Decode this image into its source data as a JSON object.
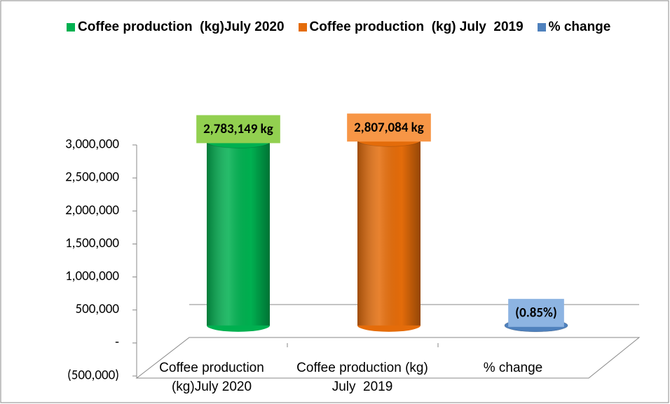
{
  "chart_data": {
    "type": "bar3d",
    "categories": [
      "Coffee production (kg)July 2020",
      "Coffee production (kg) July  2019",
      "% change"
    ],
    "series": [
      {
        "name": "Coffee production  (kg)July 2020",
        "color": "#00b050",
        "label_color": "#92d050",
        "values": [
          2783149,
          null,
          null
        ],
        "value_labels": [
          "2,783,149 kg",
          null,
          null
        ]
      },
      {
        "name": "Coffee production  (kg) July  2019",
        "color": "#e46c0a",
        "label_color": "#f79646",
        "values": [
          null,
          2807084,
          null
        ],
        "value_labels": [
          null,
          "2,807,084 kg",
          null
        ]
      },
      {
        "name": "% change",
        "color": "#4f81bd",
        "label_color": "#8db4e2",
        "values": [
          null,
          null,
          -0.85
        ],
        "value_labels": [
          null,
          null,
          "(0.85%)"
        ]
      }
    ],
    "ylim": [
      -500000,
      3000000
    ],
    "yticks": [
      {
        "value": -500000,
        "label": "(500,000)"
      },
      {
        "value": 0,
        "label": "-"
      },
      {
        "value": 500000,
        "label": "500,000"
      },
      {
        "value": 1000000,
        "label": "1,000,000"
      },
      {
        "value": 1500000,
        "label": "1,500,000"
      },
      {
        "value": 2000000,
        "label": "2,000,000"
      },
      {
        "value": 2500000,
        "label": "2,500,000"
      },
      {
        "value": 3000000,
        "label": "3,000,000"
      }
    ],
    "legend": "top"
  }
}
